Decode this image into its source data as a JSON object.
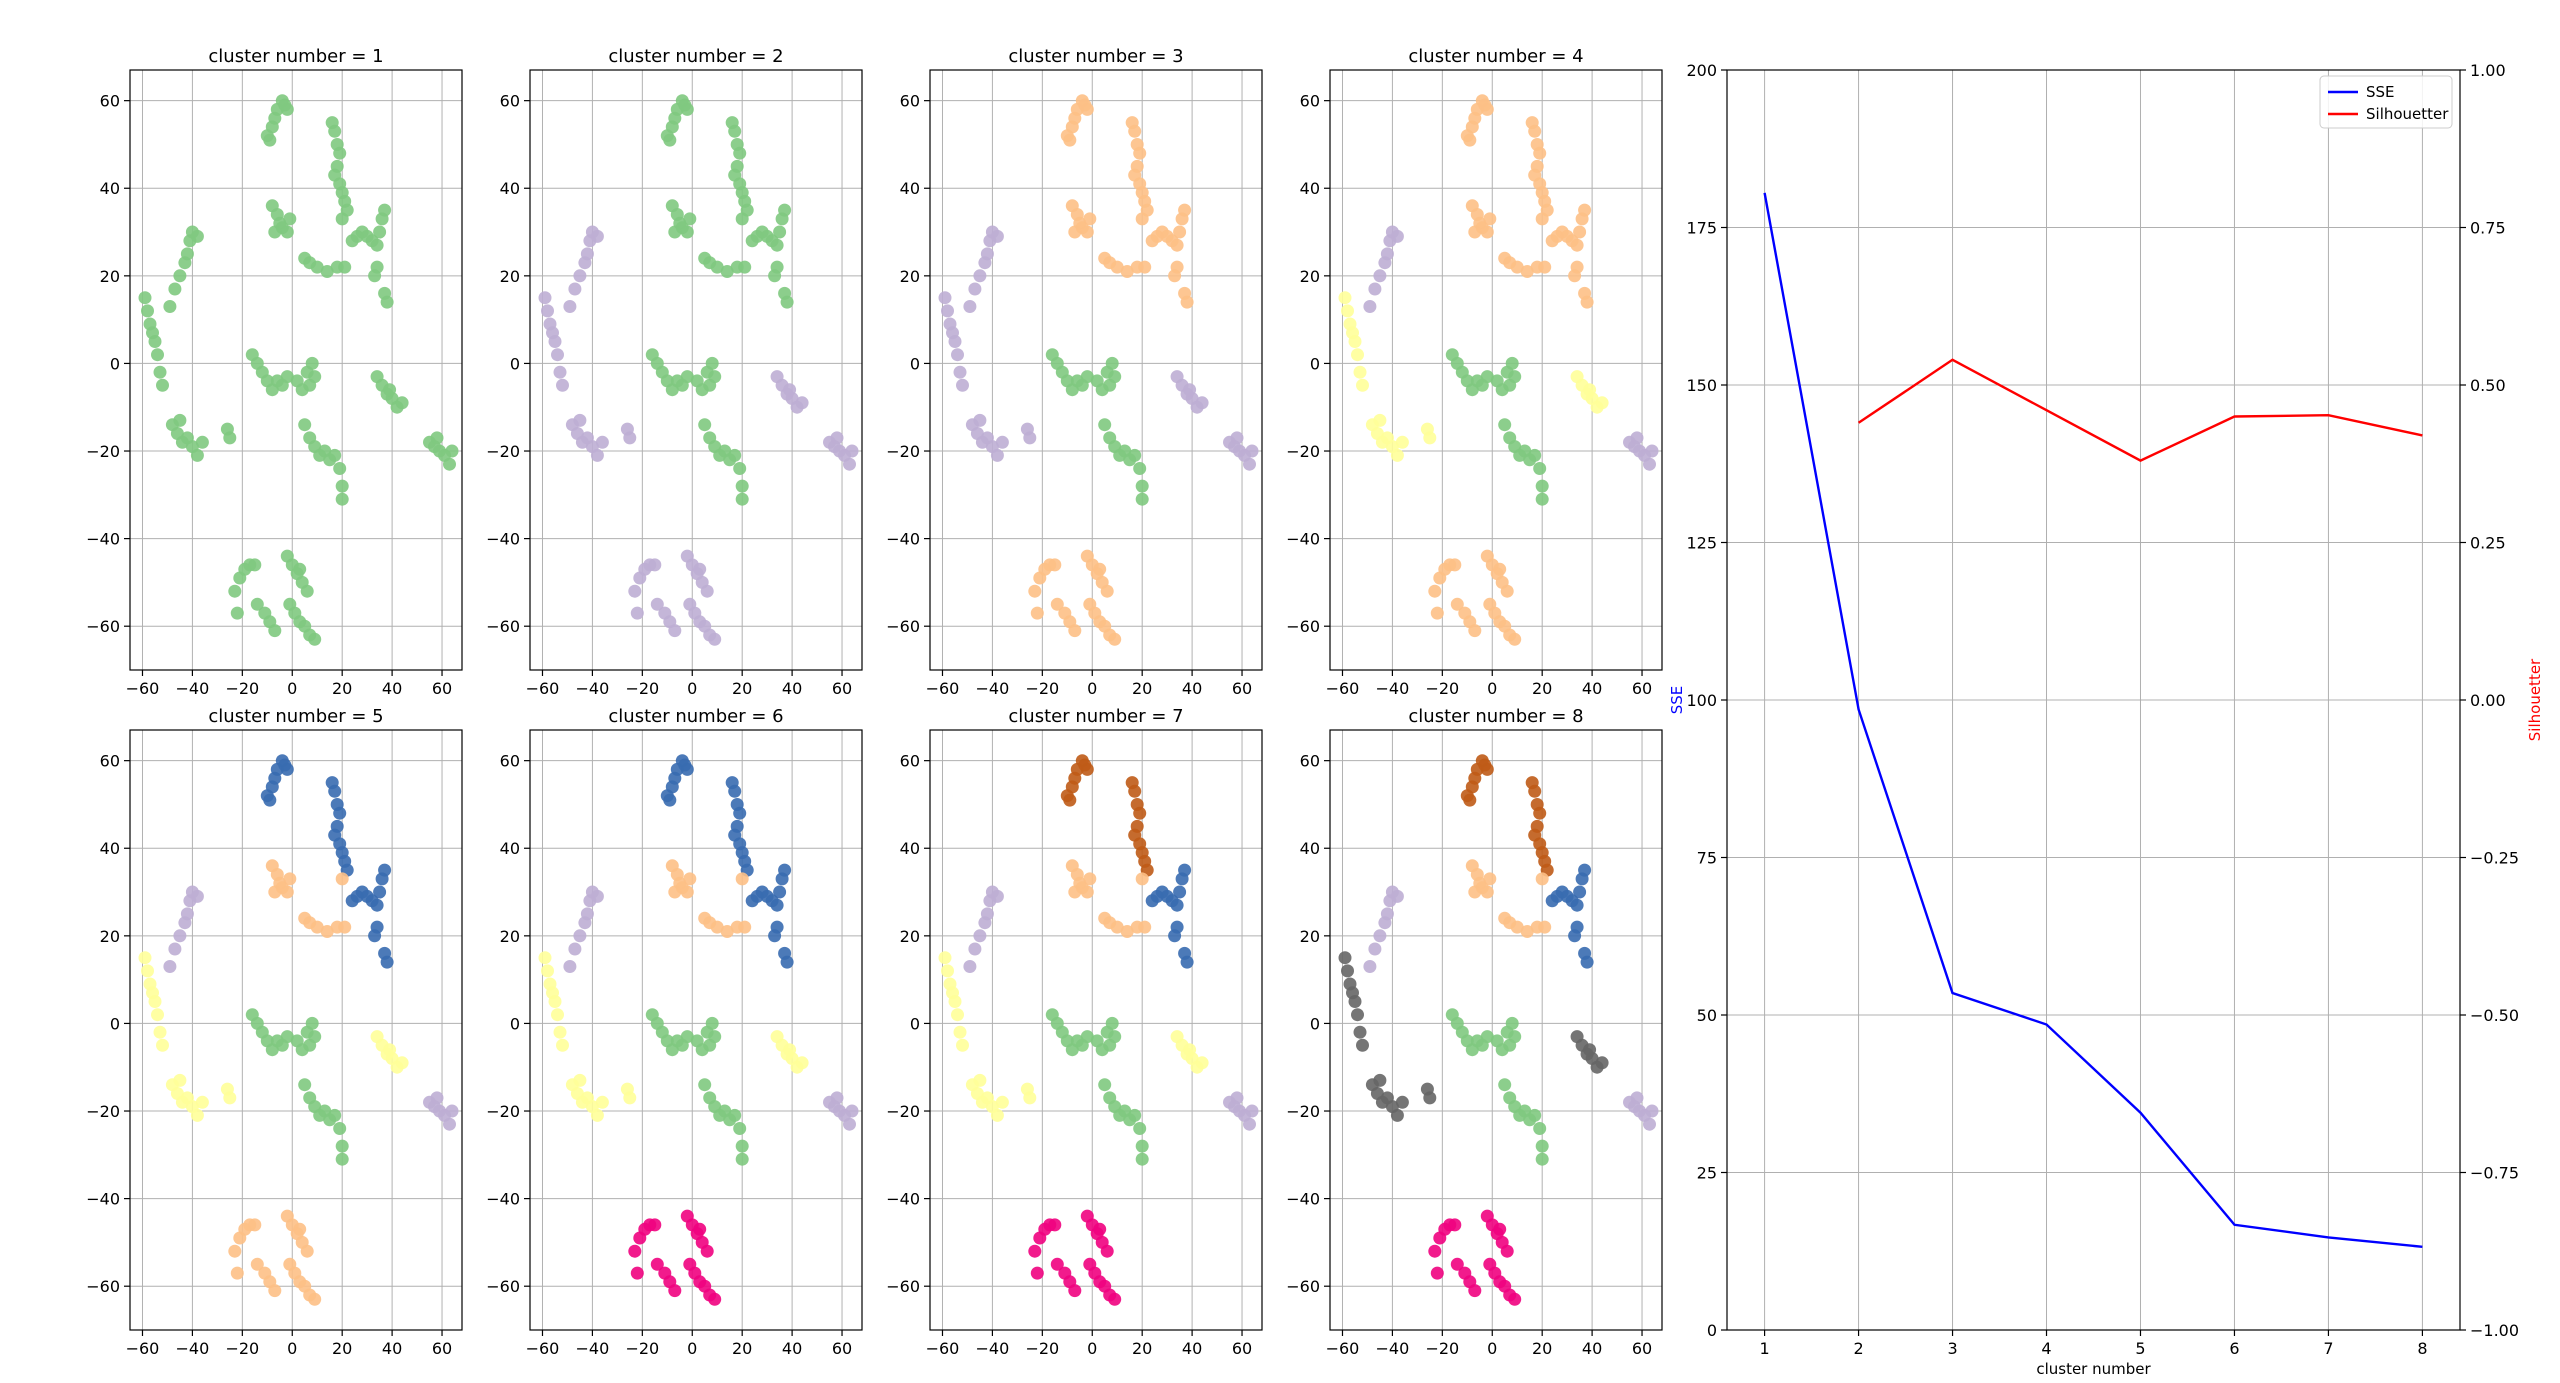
{
  "chart_data": [
    {
      "type": "scatter",
      "panel": 1,
      "title": "cluster number = 1",
      "xlim": [
        -65,
        68
      ],
      "ylim": [
        -70,
        67
      ],
      "xticks": [
        -60,
        -40,
        -20,
        0,
        20,
        40,
        60
      ],
      "yticks": [
        -60,
        -40,
        -20,
        0,
        20,
        40,
        60
      ],
      "xtick_labels": [
        "−60",
        "−40",
        "−20",
        "0",
        "20",
        "40",
        "60"
      ],
      "ytick_labels": [
        "−60",
        "−40",
        "−20",
        "0",
        "20",
        "40",
        "60"
      ]
    },
    {
      "type": "scatter",
      "panel": 2,
      "title": "cluster number = 2",
      "xlim": [
        -65,
        68
      ],
      "ylim": [
        -70,
        67
      ],
      "xticks": [
        -60,
        -40,
        -20,
        0,
        20,
        40,
        60
      ],
      "yticks": [
        -60,
        -40,
        -20,
        0,
        20,
        40,
        60
      ],
      "xtick_labels": [
        "−60",
        "−40",
        "−20",
        "0",
        "20",
        "40",
        "60"
      ],
      "ytick_labels": [
        "−60",
        "−40",
        "−20",
        "0",
        "20",
        "40",
        "60"
      ]
    },
    {
      "type": "scatter",
      "panel": 3,
      "title": "cluster number = 3",
      "xlim": [
        -65,
        68
      ],
      "ylim": [
        -70,
        67
      ],
      "xticks": [
        -60,
        -40,
        -20,
        0,
        20,
        40,
        60
      ],
      "yticks": [
        -60,
        -40,
        -20,
        0,
        20,
        40,
        60
      ],
      "xtick_labels": [
        "−60",
        "−40",
        "−20",
        "0",
        "20",
        "40",
        "60"
      ],
      "ytick_labels": [
        "−60",
        "−40",
        "−20",
        "0",
        "20",
        "40",
        "60"
      ]
    },
    {
      "type": "scatter",
      "panel": 4,
      "title": "cluster number = 4",
      "xlim": [
        -65,
        68
      ],
      "ylim": [
        -70,
        67
      ],
      "xticks": [
        -60,
        -40,
        -20,
        0,
        20,
        40,
        60
      ],
      "yticks": [
        -60,
        -40,
        -20,
        0,
        20,
        40,
        60
      ],
      "xtick_labels": [
        "−60",
        "−40",
        "−20",
        "0",
        "20",
        "40",
        "60"
      ],
      "ytick_labels": [
        "−60",
        "−40",
        "−20",
        "0",
        "20",
        "40",
        "60"
      ]
    },
    {
      "type": "scatter",
      "panel": 5,
      "title": "cluster number = 5",
      "xlim": [
        -65,
        68
      ],
      "ylim": [
        -70,
        67
      ],
      "xticks": [
        -60,
        -40,
        -20,
        0,
        20,
        40,
        60
      ],
      "yticks": [
        -60,
        -40,
        -20,
        0,
        20,
        40,
        60
      ],
      "xtick_labels": [
        "−60",
        "−40",
        "−20",
        "0",
        "20",
        "40",
        "60"
      ],
      "ytick_labels": [
        "−60",
        "−40",
        "−20",
        "0",
        "20",
        "40",
        "60"
      ]
    },
    {
      "type": "scatter",
      "panel": 6,
      "title": "cluster number = 6",
      "xlim": [
        -65,
        68
      ],
      "ylim": [
        -70,
        67
      ],
      "xticks": [
        -60,
        -40,
        -20,
        0,
        20,
        40,
        60
      ],
      "yticks": [
        -60,
        -40,
        -20,
        0,
        20,
        40,
        60
      ],
      "xtick_labels": [
        "−60",
        "−40",
        "−20",
        "0",
        "20",
        "40",
        "60"
      ],
      "ytick_labels": [
        "−60",
        "−40",
        "−20",
        "0",
        "20",
        "40",
        "60"
      ]
    },
    {
      "type": "scatter",
      "panel": 7,
      "title": "cluster number = 7",
      "xlim": [
        -65,
        68
      ],
      "ylim": [
        -70,
        67
      ],
      "xticks": [
        -60,
        -40,
        -20,
        0,
        20,
        40,
        60
      ],
      "yticks": [
        -60,
        -40,
        -20,
        0,
        20,
        40,
        60
      ],
      "xtick_labels": [
        "−60",
        "−40",
        "−20",
        "0",
        "20",
        "40",
        "60"
      ],
      "ytick_labels": [
        "−60",
        "−40",
        "−20",
        "0",
        "20",
        "40",
        "60"
      ]
    },
    {
      "type": "scatter",
      "panel": 8,
      "title": "cluster number = 8",
      "xlim": [
        -65,
        68
      ],
      "ylim": [
        -70,
        67
      ],
      "xticks": [
        -60,
        -40,
        -20,
        0,
        20,
        40,
        60
      ],
      "yticks": [
        -60,
        -40,
        -20,
        0,
        20,
        40,
        60
      ],
      "xtick_labels": [
        "−60",
        "−40",
        "−20",
        "0",
        "20",
        "40",
        "60"
      ],
      "ytick_labels": [
        "−60",
        "−40",
        "−20",
        "0",
        "20",
        "40",
        "60"
      ]
    },
    {
      "type": "line",
      "panel": 9,
      "title": "",
      "xlabel": "cluster number",
      "ylabel": "SSE",
      "y2label": "Silhouetter",
      "xlim": [
        0.6,
        8.4
      ],
      "ylim": [
        0,
        200
      ],
      "y2lim": [
        -1.0,
        1.0
      ],
      "xticks": [
        1,
        2,
        3,
        4,
        5,
        6,
        7,
        8
      ],
      "xtick_labels": [
        "1",
        "2",
        "3",
        "4",
        "5",
        "6",
        "7",
        "8"
      ],
      "yticks": [
        0,
        25,
        50,
        75,
        100,
        125,
        150,
        175,
        200
      ],
      "ytick_labels": [
        "0",
        "25",
        "50",
        "75",
        "100",
        "125",
        "150",
        "175",
        "200"
      ],
      "y2ticks": [
        -1.0,
        -0.75,
        -0.5,
        -0.25,
        0.0,
        0.25,
        0.5,
        0.75,
        1.0
      ],
      "y2tick_labels": [
        "−1.00",
        "−0.75",
        "−0.50",
        "−0.25",
        "0.00",
        "0.25",
        "0.50",
        "0.75",
        "1.00"
      ],
      "grid": true,
      "legend": "top-right",
      "series": [
        {
          "name": "SSE",
          "axis": "left",
          "color": "#0000ff",
          "x": [
            1,
            2,
            3,
            4,
            5,
            6,
            7,
            8
          ],
          "values": [
            180.5,
            98.5,
            53.5,
            48.5,
            34.5,
            16.7,
            14.7,
            13.2
          ]
        },
        {
          "name": "Silhouetter",
          "axis": "right",
          "color": "#ff0000",
          "x": [
            2,
            3,
            4,
            5,
            6,
            7,
            8
          ],
          "values": [
            0.44,
            0.54,
            0.46,
            0.38,
            0.45,
            0.452,
            0.42
          ]
        }
      ]
    }
  ],
  "colors": {
    "green": "#7fc97f",
    "purple": "#beaed4",
    "orange": "#fdc086",
    "yellow": "#ffff99",
    "blue": "#386cb0",
    "magenta": "#f0027f",
    "brown": "#bf5b17",
    "gray": "#666666",
    "sse_line": "#0000ff",
    "silhouette_line": "#ff0000",
    "sse_label": "#0000ff",
    "silhouette_label": "#ff0000"
  }
}
